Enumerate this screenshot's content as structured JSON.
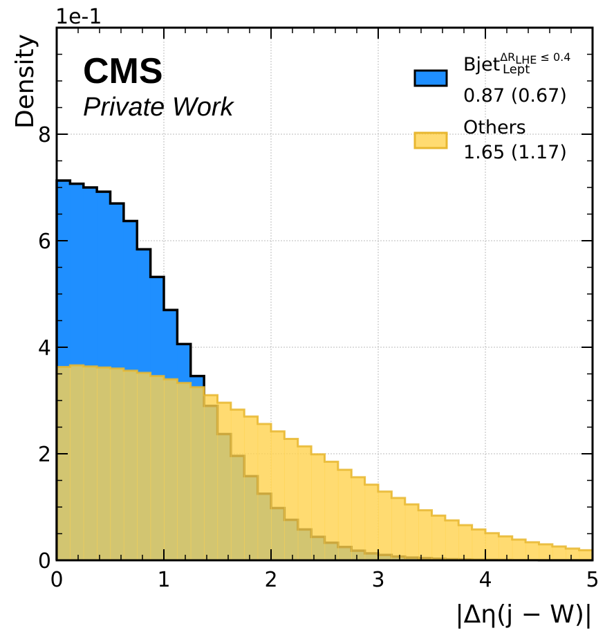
{
  "chart_data": {
    "type": "histogram",
    "bin_edges_start": 0,
    "bin_width": 0.125,
    "xlim": [
      0,
      5
    ],
    "ylim": [
      0,
      1.0
    ],
    "xlabel": "|Δη(j − W)|",
    "ylabel": "Density",
    "y_offset_label": "1e-1",
    "x_ticks": [
      0,
      1,
      2,
      3,
      4,
      5
    ],
    "x_tick_labels": [
      "0",
      "1",
      "2",
      "3",
      "4",
      "5"
    ],
    "y_ticks": [
      0,
      0.2,
      0.4,
      0.6,
      0.8
    ],
    "y_tick_labels": [
      "0",
      "2",
      "4",
      "6",
      "8"
    ],
    "grid": true,
    "legend_position": "top-right",
    "series": [
      {
        "name": "Bjet",
        "legend_base": "Bjet",
        "legend_sup": "ΔR",
        "legend_sup_sub": "LHE",
        "legend_sup_tail": " ≤ 0.4",
        "legend_sub": "Lept",
        "legend_stats": "0.87 (0.67)",
        "fill": "#1f8fff",
        "edge": "#000000",
        "values": [
          0.713,
          0.707,
          0.7,
          0.692,
          0.67,
          0.637,
          0.584,
          0.532,
          0.47,
          0.406,
          0.346,
          0.29,
          0.237,
          0.196,
          0.158,
          0.125,
          0.098,
          0.076,
          0.058,
          0.044,
          0.033,
          0.025,
          0.018,
          0.013,
          0.01,
          0.007,
          0.005,
          0.004,
          0.003,
          0.002,
          0.0015,
          0.001,
          0.0008,
          0.0006,
          0.0004,
          0.0003,
          0.0002,
          0.0001,
          0.0001,
          0.0001
        ]
      },
      {
        "name": "Others",
        "legend_base": "Others",
        "legend_stats": "1.65 (1.17)",
        "fill": "#ffd24d",
        "fill_opacity": 0.8,
        "edge": "#e8b730",
        "values": [
          0.363,
          0.366,
          0.364,
          0.362,
          0.36,
          0.356,
          0.352,
          0.346,
          0.34,
          0.333,
          0.325,
          0.31,
          0.296,
          0.283,
          0.27,
          0.256,
          0.242,
          0.228,
          0.214,
          0.199,
          0.185,
          0.17,
          0.156,
          0.142,
          0.129,
          0.117,
          0.105,
          0.094,
          0.084,
          0.075,
          0.066,
          0.058,
          0.051,
          0.045,
          0.039,
          0.034,
          0.03,
          0.026,
          0.022,
          0.019
        ]
      }
    ]
  },
  "labels": {
    "cms": "CMS",
    "private_work": "Private Work"
  }
}
